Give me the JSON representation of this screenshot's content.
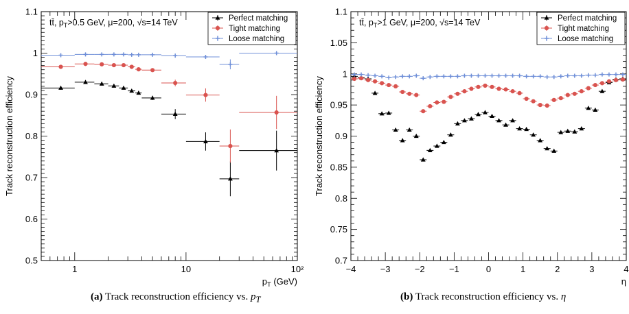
{
  "captions": [
    {
      "label": "(a)",
      "text": "Track reconstruction efficiency vs.",
      "var": "p",
      "sub": "T"
    },
    {
      "label": "(b)",
      "text": "Track reconstruction efficiency vs.",
      "var": "η",
      "sub": ""
    }
  ],
  "chart_data": [
    {
      "type": "scatter",
      "x_scale": "log",
      "xlim": [
        0.5,
        100
      ],
      "ylim": [
        0.5,
        1.1
      ],
      "xlabel": "p_T (GeV)",
      "ylabel": "Track reconstruction efficiency",
      "x_ticks": [
        "1",
        "10",
        "10²"
      ],
      "y_ticks": [
        "0.5",
        "0.6",
        "0.7",
        "0.8",
        "0.9",
        "1",
        "1.1"
      ],
      "annotation": "tt̄, p_T>0.5 GeV, μ=200, √s=14 TeV",
      "legend": "top-right",
      "series": [
        {
          "name": "Perfect matching",
          "color": "#000000",
          "marker": "triangle",
          "points": [
            {
              "x": 0.75,
              "xlo": 0.5,
              "xhi": 1.0,
              "y": 0.916,
              "err": 0.004
            },
            {
              "x": 1.25,
              "xlo": 1.0,
              "xhi": 1.5,
              "y": 0.93,
              "err": 0.003
            },
            {
              "x": 1.75,
              "xlo": 1.5,
              "xhi": 2.0,
              "y": 0.926,
              "err": 0.003
            },
            {
              "x": 2.25,
              "xlo": 2.0,
              "xhi": 2.5,
              "y": 0.921,
              "err": 0.003
            },
            {
              "x": 2.75,
              "xlo": 2.5,
              "xhi": 3.0,
              "y": 0.916,
              "err": 0.003
            },
            {
              "x": 3.25,
              "xlo": 3.0,
              "xhi": 3.5,
              "y": 0.909,
              "err": 0.003
            },
            {
              "x": 3.75,
              "xlo": 3.5,
              "xhi": 4.0,
              "y": 0.904,
              "err": 0.003
            },
            {
              "x": 5.0,
              "xlo": 4.0,
              "xhi": 6.0,
              "y": 0.892,
              "err": 0.005
            },
            {
              "x": 8.0,
              "xlo": 6.0,
              "xhi": 10.0,
              "y": 0.853,
              "err": 0.012
            },
            {
              "x": 15.0,
              "xlo": 10.0,
              "xhi": 20.0,
              "y": 0.787,
              "err": 0.022
            },
            {
              "x": 25.0,
              "xlo": 20.0,
              "xhi": 30.0,
              "y": 0.697,
              "err": 0.042
            },
            {
              "x": 65.0,
              "xlo": 30.0,
              "xhi": 100.0,
              "y": 0.765,
              "err": 0.048
            }
          ]
        },
        {
          "name": "Tight matching",
          "color": "#d9534f",
          "marker": "circle",
          "points": [
            {
              "x": 0.75,
              "xlo": 0.5,
              "xhi": 1.0,
              "y": 0.967,
              "err": 0.003
            },
            {
              "x": 1.25,
              "xlo": 1.0,
              "xhi": 1.5,
              "y": 0.974,
              "err": 0.002
            },
            {
              "x": 1.75,
              "xlo": 1.5,
              "xhi": 2.0,
              "y": 0.973,
              "err": 0.002
            },
            {
              "x": 2.25,
              "xlo": 2.0,
              "xhi": 2.5,
              "y": 0.971,
              "err": 0.002
            },
            {
              "x": 2.75,
              "xlo": 2.5,
              "xhi": 3.0,
              "y": 0.971,
              "err": 0.002
            },
            {
              "x": 3.25,
              "xlo": 3.0,
              "xhi": 3.5,
              "y": 0.967,
              "err": 0.002
            },
            {
              "x": 3.75,
              "xlo": 3.5,
              "xhi": 4.0,
              "y": 0.961,
              "err": 0.002
            },
            {
              "x": 5.0,
              "xlo": 4.0,
              "xhi": 6.0,
              "y": 0.959,
              "err": 0.003
            },
            {
              "x": 8.0,
              "xlo": 6.0,
              "xhi": 10.0,
              "y": 0.928,
              "err": 0.008
            },
            {
              "x": 15.0,
              "xlo": 10.0,
              "xhi": 20.0,
              "y": 0.899,
              "err": 0.016
            },
            {
              "x": 25.0,
              "xlo": 20.0,
              "xhi": 30.0,
              "y": 0.776,
              "err": 0.04
            },
            {
              "x": 65.0,
              "xlo": 30.0,
              "xhi": 100.0,
              "y": 0.857,
              "err": 0.04
            }
          ]
        },
        {
          "name": "Loose matching",
          "color": "#6f8fd8",
          "marker": "cross",
          "points": [
            {
              "x": 0.75,
              "xlo": 0.5,
              "xhi": 1.0,
              "y": 0.995,
              "err": 0.001
            },
            {
              "x": 1.25,
              "xlo": 1.0,
              "xhi": 1.5,
              "y": 0.997,
              "err": 0.001
            },
            {
              "x": 1.75,
              "xlo": 1.5,
              "xhi": 2.0,
              "y": 0.997,
              "err": 0.001
            },
            {
              "x": 2.25,
              "xlo": 2.0,
              "xhi": 2.5,
              "y": 0.997,
              "err": 0.001
            },
            {
              "x": 2.75,
              "xlo": 2.5,
              "xhi": 3.0,
              "y": 0.997,
              "err": 0.001
            },
            {
              "x": 3.25,
              "xlo": 3.0,
              "xhi": 3.5,
              "y": 0.996,
              "err": 0.001
            },
            {
              "x": 3.75,
              "xlo": 3.5,
              "xhi": 4.0,
              "y": 0.996,
              "err": 0.001
            },
            {
              "x": 5.0,
              "xlo": 4.0,
              "xhi": 6.0,
              "y": 0.996,
              "err": 0.001
            },
            {
              "x": 8.0,
              "xlo": 6.0,
              "xhi": 10.0,
              "y": 0.994,
              "err": 0.002
            },
            {
              "x": 15.0,
              "xlo": 10.0,
              "xhi": 20.0,
              "y": 0.991,
              "err": 0.003
            },
            {
              "x": 25.0,
              "xlo": 20.0,
              "xhi": 30.0,
              "y": 0.973,
              "err": 0.012
            },
            {
              "x": 65.0,
              "xlo": 30.0,
              "xhi": 100.0,
              "y": 1.0,
              "err": 0.001
            }
          ]
        }
      ]
    },
    {
      "type": "scatter",
      "x_scale": "linear",
      "xlim": [
        -4,
        4
      ],
      "ylim": [
        0.7,
        1.1
      ],
      "xlabel": "η",
      "ylabel": "Track reconstruction efficiency",
      "x_ticks": [
        "−4",
        "−3",
        "−2",
        "−1",
        "0",
        "1",
        "2",
        "3",
        "4"
      ],
      "y_ticks": [
        "0.7",
        "0.75",
        "0.8",
        "0.85",
        "0.9",
        "0.95",
        "1",
        "1.05",
        "1.1"
      ],
      "annotation": "tt̄, p_T>1 GeV, μ=200, √s=14 TeV",
      "legend": "top-right",
      "bin_width": 0.2,
      "x": [
        -3.9,
        -3.7,
        -3.5,
        -3.3,
        -3.1,
        -2.9,
        -2.7,
        -2.5,
        -2.3,
        -2.1,
        -1.9,
        -1.7,
        -1.5,
        -1.3,
        -1.1,
        -0.9,
        -0.7,
        -0.5,
        -0.3,
        -0.1,
        0.1,
        0.3,
        0.5,
        0.7,
        0.9,
        1.1,
        1.3,
        1.5,
        1.7,
        1.9,
        2.1,
        2.3,
        2.5,
        2.7,
        2.9,
        3.1,
        3.3,
        3.5,
        3.7,
        3.9
      ],
      "series": [
        {
          "name": "Perfect matching",
          "color": "#000000",
          "marker": "triangle",
          "values": [
            0.996,
            0.994,
            0.992,
            0.969,
            0.936,
            0.937,
            0.91,
            0.893,
            0.91,
            0.9,
            0.862,
            0.877,
            0.884,
            0.89,
            0.902,
            0.92,
            0.925,
            0.928,
            0.935,
            0.938,
            0.932,
            0.925,
            0.918,
            0.925,
            0.912,
            0.911,
            0.902,
            0.893,
            0.88,
            0.876,
            0.906,
            0.908,
            0.907,
            0.912,
            0.945,
            0.942,
            0.972,
            0.986,
            0.991,
            0.992
          ]
        },
        {
          "name": "Tight matching",
          "color": "#d9534f",
          "marker": "circle",
          "values": [
            0.992,
            0.993,
            0.99,
            0.988,
            0.985,
            0.982,
            0.98,
            0.971,
            0.968,
            0.966,
            0.94,
            0.948,
            0.954,
            0.955,
            0.963,
            0.968,
            0.972,
            0.976,
            0.979,
            0.981,
            0.979,
            0.976,
            0.975,
            0.972,
            0.969,
            0.96,
            0.956,
            0.95,
            0.949,
            0.958,
            0.961,
            0.966,
            0.968,
            0.972,
            0.977,
            0.982,
            0.985,
            0.988,
            0.99,
            0.991
          ]
        },
        {
          "name": "Loose matching",
          "color": "#6f8fd8",
          "marker": "cross",
          "values": [
            0.999,
            0.999,
            0.998,
            0.997,
            0.996,
            0.994,
            0.995,
            0.996,
            0.996,
            0.997,
            0.993,
            0.995,
            0.996,
            0.996,
            0.996,
            0.996,
            0.997,
            0.997,
            0.997,
            0.997,
            0.997,
            0.997,
            0.997,
            0.997,
            0.997,
            0.996,
            0.996,
            0.996,
            0.995,
            0.995,
            0.996,
            0.997,
            0.997,
            0.997,
            0.998,
            0.998,
            0.999,
            0.999,
            0.999,
            0.999
          ]
        }
      ]
    }
  ]
}
